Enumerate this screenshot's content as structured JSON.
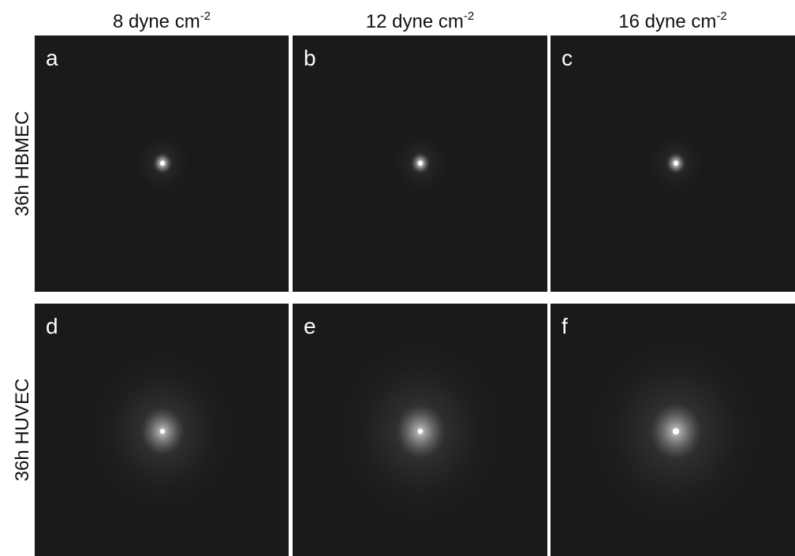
{
  "columns": [
    {
      "label": "8 dyne cm",
      "sup": "-2"
    },
    {
      "label": "12 dyne cm",
      "sup": "-2"
    },
    {
      "label": "16 dyne cm",
      "sup": "-2"
    }
  ],
  "rows": [
    {
      "label": "36h HBMEC",
      "panels": [
        "a",
        "b",
        "c"
      ]
    },
    {
      "label": "36h HUVEC",
      "panels": [
        "d",
        "e",
        "f"
      ]
    }
  ]
}
